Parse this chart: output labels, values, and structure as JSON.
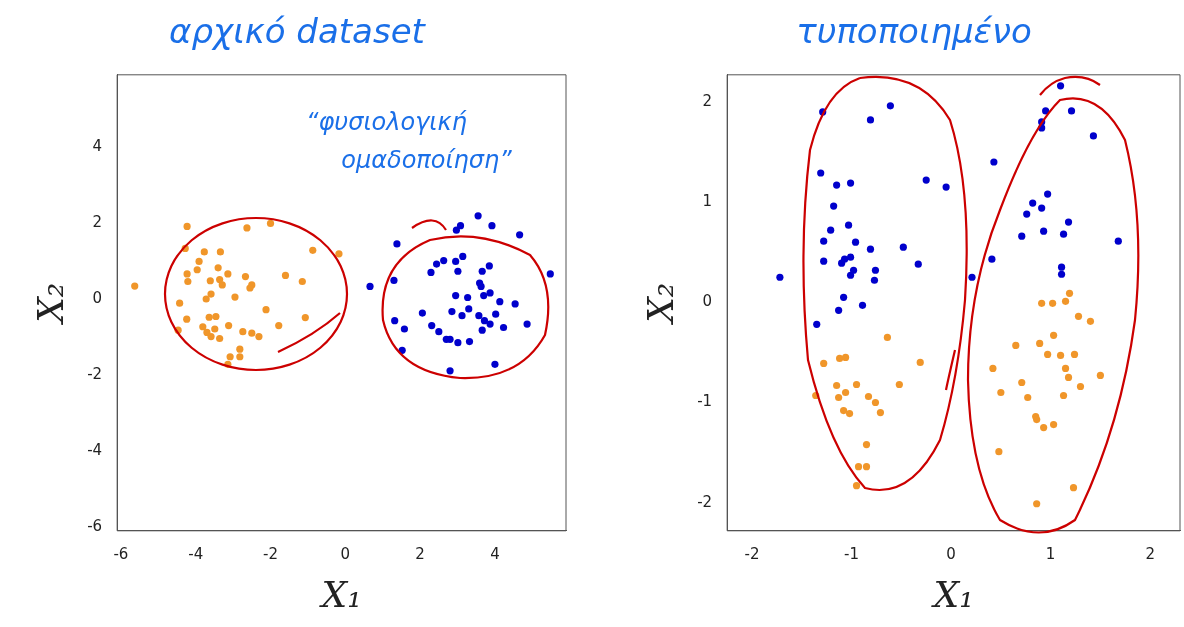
{
  "chart_data": [
    {
      "type": "scatter",
      "title": "αρχικό dataset",
      "xlabel": "X₁",
      "ylabel": "X₂",
      "xlim": [
        -6.1,
        5.9
      ],
      "ylim": [
        -6.1,
        5.9
      ],
      "xticks": [
        -6,
        -4,
        -2,
        0,
        2,
        4
      ],
      "yticks": [
        -6,
        -4,
        -2,
        0,
        2,
        4
      ],
      "grid": false,
      "legend": false,
      "marker": "circle",
      "annotations": [
        "“φυσιολογική ομαδοποίηση”"
      ],
      "series": [
        {
          "color": "#f0962a",
          "x": [
            -4.23,
            -2.63,
            -2.0,
            -4.28,
            -3.77,
            -3.34,
            -0.87,
            -0.17,
            -3.91,
            -3.4,
            -3.96,
            -4.23,
            -3.14,
            -2.67,
            -1.6,
            -4.21,
            -3.61,
            -3.36,
            -3.29,
            -2.5,
            -2.55,
            -1.15,
            -5.63,
            -3.59,
            -3.72,
            -2.95,
            -4.43,
            -2.12,
            -3.64,
            -3.46,
            -4.24,
            -1.07,
            -3.81,
            -3.49,
            -3.12,
            -1.78,
            -4.47,
            -3.7,
            -3.59,
            -3.36,
            -2.74,
            -2.5,
            -2.31,
            -2.82,
            -3.08,
            -2.82,
            -3.14
          ],
          "values": [
            1.91,
            1.87,
            1.99,
            1.33,
            1.24,
            1.24,
            1.28,
            1.19,
            0.99,
            0.82,
            0.77,
            0.66,
            0.66,
            0.59,
            0.62,
            0.46,
            0.48,
            0.51,
            0.37,
            0.37,
            0.29,
            0.46,
            0.34,
            0.13,
            0.0,
            0.05,
            -0.11,
            -0.28,
            -0.48,
            -0.46,
            -0.53,
            -0.49,
            -0.73,
            -0.79,
            -0.7,
            -0.7,
            -0.82,
            -0.88,
            -0.99,
            -1.04,
            -0.86,
            -0.9,
            -0.99,
            -1.32,
            -1.52,
            -1.52,
            -1.72
          ]
        },
        {
          "color": "#0000cc",
          "x": [
            3.55,
            3.08,
            2.97,
            3.92,
            4.66,
            1.38,
            2.63,
            2.44,
            2.95,
            3.14,
            3.85,
            2.29,
            3.01,
            3.66,
            5.48,
            1.3,
            0.66,
            3.59,
            3.63,
            2.95,
            3.27,
            3.7,
            3.87,
            4.13,
            4.54,
            2.06,
            2.85,
            3.3,
            3.12,
            3.57,
            4.02,
            3.72,
            3.87,
            1.32,
            1.58,
            2.31,
            2.5,
            3.66,
            4.23,
            4.86,
            2.7,
            2.8,
            3.01,
            3.32,
            1.52,
            4.0,
            2.8
          ],
          "values": [
            2.19,
            1.93,
            1.81,
            1.93,
            1.69,
            1.45,
            1.01,
            0.92,
            0.99,
            1.12,
            0.87,
            0.7,
            0.73,
            0.73,
            0.66,
            0.49,
            0.33,
            0.42,
            0.33,
            0.09,
            0.04,
            0.09,
            0.16,
            -0.07,
            -0.13,
            -0.37,
            -0.33,
            -0.26,
            -0.44,
            -0.44,
            -0.4,
            -0.57,
            -0.66,
            -0.57,
            -0.79,
            -0.7,
            -0.86,
            -0.82,
            -0.75,
            -0.66,
            -1.06,
            -1.06,
            -1.15,
            -1.12,
            -1.35,
            -1.72,
            -1.89
          ]
        }
      ]
    },
    {
      "type": "scatter",
      "title": "τυποποιημένο",
      "xlabel": "X₁",
      "ylabel": "X₂",
      "xlim": [
        -2.25,
        2.3
      ],
      "ylim": [
        -2.28,
        2.27
      ],
      "xticks": [
        -2,
        -1,
        0,
        1,
        2
      ],
      "yticks": [
        -2,
        -1,
        0,
        1,
        2
      ],
      "grid": false,
      "legend": false,
      "marker": "circle",
      "series": [
        {
          "color": "#f0962a",
          "x": [
            1.19,
            0.91,
            1.02,
            1.15,
            1.28,
            1.4,
            1.03,
            0.65,
            0.89,
            0.97,
            1.1,
            1.24,
            0.42,
            1.15,
            1.18,
            1.5,
            0.71,
            1.3,
            0.5,
            0.77,
            1.13,
            0.85,
            0.86,
            0.93,
            1.03,
            0.48,
            1.23,
            0.86,
            -0.64,
            -1.28,
            -1.12,
            -1.06,
            -0.31,
            -1.15,
            -0.95,
            -0.52,
            -1.36,
            -1.13,
            -1.06,
            -0.83,
            -0.76,
            -1.08,
            -1.02,
            -0.71,
            -0.85,
            -0.93,
            -0.85,
            -0.95
          ],
          "values": [
            0.09,
            -0.01,
            -0.01,
            0.01,
            -0.14,
            -0.19,
            -0.33,
            -0.43,
            -0.41,
            -0.52,
            -0.53,
            -0.52,
            -0.66,
            -0.66,
            -0.75,
            -0.73,
            -0.8,
            -0.84,
            -0.9,
            -0.95,
            -0.93,
            -1.14,
            -1.17,
            -1.25,
            -1.22,
            -1.49,
            -1.85,
            -2.01,
            -0.35,
            -0.61,
            -0.56,
            -0.55,
            -0.6,
            -0.83,
            -0.82,
            -0.82,
            -0.93,
            -0.95,
            -0.9,
            -0.94,
            -1.0,
            -1.08,
            -1.11,
            -1.1,
            -1.42,
            -1.64,
            -1.64,
            -1.83
          ]
        },
        {
          "color": "#0000cc",
          "x": [
            -1.29,
            -0.61,
            -0.81,
            1.1,
            0.95,
            1.21,
            0.91,
            0.91,
            1.43,
            0.43,
            -1.31,
            -1.15,
            -1.01,
            -0.25,
            -0.05,
            -1.18,
            0.97,
            0.82,
            0.91,
            0.76,
            -1.21,
            -1.03,
            -1.28,
            -0.96,
            -0.81,
            -0.48,
            1.18,
            0.71,
            0.93,
            1.13,
            1.68,
            -1.28,
            -1.1,
            -1.01,
            -1.07,
            -0.33,
            0.41,
            -0.98,
            -1.01,
            -0.76,
            -0.77,
            -1.72,
            0.21,
            1.11,
            1.11,
            -1.08,
            -1.13,
            -0.89,
            -1.35
          ],
          "values": [
            1.9,
            1.96,
            1.82,
            2.16,
            1.91,
            1.91,
            1.8,
            1.74,
            1.66,
            1.4,
            1.29,
            1.17,
            1.19,
            1.22,
            1.15,
            0.96,
            1.08,
            0.99,
            0.94,
            0.88,
            0.72,
            0.77,
            0.61,
            0.6,
            0.53,
            0.55,
            0.8,
            0.66,
            0.71,
            0.68,
            0.61,
            0.41,
            0.39,
            0.45,
            0.43,
            0.38,
            0.43,
            0.32,
            0.27,
            0.32,
            0.22,
            0.25,
            0.25,
            0.35,
            0.28,
            0.05,
            -0.08,
            -0.03,
            -0.22
          ]
        }
      ]
    }
  ]
}
